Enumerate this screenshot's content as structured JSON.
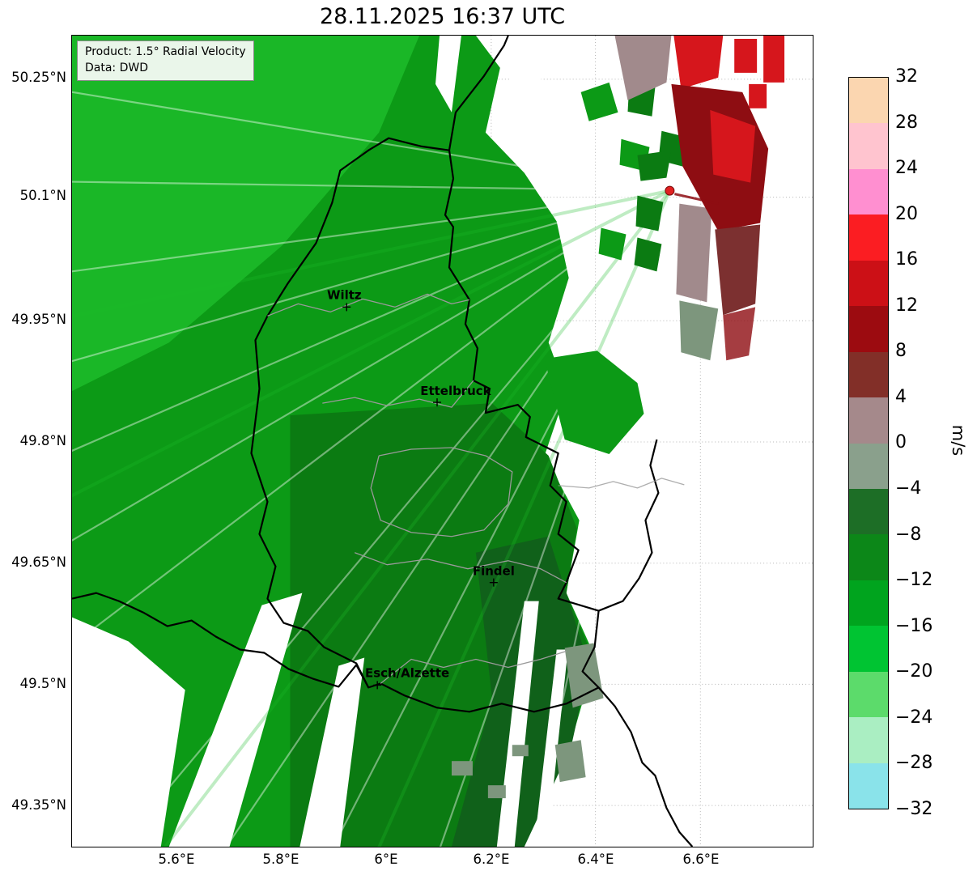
{
  "title": "28.11.2025 16:37 UTC",
  "info_box": {
    "product": "Product: 1.5° Radial Velocity",
    "source": "Data: DWD"
  },
  "axes": {
    "lat_ticks": [
      "50.25°N",
      "50.1°N",
      "49.95°N",
      "49.8°N",
      "49.65°N",
      "49.5°N",
      "49.35°N"
    ],
    "lon_ticks": [
      "5.6°E",
      "5.8°E",
      "6°E",
      "6.2°E",
      "6.4°E",
      "6.6°E"
    ]
  },
  "cities": {
    "wiltz": "Wiltz",
    "ettelbruck": "Ettelbruck",
    "findel": "Findel",
    "esch": "Esch/Alzette"
  },
  "colorbar": {
    "label": "m/s",
    "ticks": [
      "32",
      "28",
      "24",
      "20",
      "16",
      "12",
      "8",
      "4",
      "0",
      "−4",
      "−8",
      "−12",
      "−16",
      "−20",
      "−24",
      "−28",
      "−32"
    ],
    "segment_colors_top_to_bottom": [
      "#fbd6b0",
      "#ffc4cf",
      "#ff8fd0",
      "#fb1d22",
      "#cc1016",
      "#9c0b10",
      "#822f28",
      "#a5898b",
      "#8aa08c",
      "#1d6e26",
      "#0c8718",
      "#00a41e",
      "#00c432",
      "#5cdb6b",
      "#aaeec2",
      "#8ae3ea"
    ]
  },
  "palette": {
    "map_green_bright": "#1dbc2a",
    "map_green_mid": "#0c9a16",
    "map_green_dark": "#0b7b12",
    "map_green_deepest": "#10611a",
    "map_gray_green": "#7d967d",
    "map_red_bright": "#d6161c",
    "map_red_dark": "#8e0d12",
    "map_maroon": "#7c3030",
    "map_mauve": "#a18a8c",
    "border_black": "#000000",
    "border_gray": "#9a9a9a",
    "grid_gray": "#b5b5b5",
    "radar_dot": "#e02020",
    "info_box_bg": "#eaf6ea",
    "info_box_border": "#8a8a8a"
  },
  "chart_data": {
    "type": "heatmap",
    "title": "28.11.2025 16:37 UTC",
    "product": "1.5° Radial Velocity",
    "data_source": "DWD",
    "units": "m/s",
    "value_range": [
      -32,
      32
    ],
    "colorbar_ticks": [
      32,
      28,
      24,
      20,
      16,
      12,
      8,
      4,
      0,
      -4,
      -8,
      -12,
      -16,
      -20,
      -24,
      -28,
      -32
    ],
    "x_axis": {
      "ticks": [
        "5.6°E",
        "5.8°E",
        "6°E",
        "6.2°E",
        "6.4°E",
        "6.6°E"
      ],
      "range_deg_e": [
        5.4,
        6.81
      ]
    },
    "y_axis": {
      "ticks": [
        "50.25°N",
        "50.1°N",
        "49.95°N",
        "49.8°N",
        "49.65°N",
        "49.5°N",
        "49.35°N"
      ],
      "range_deg_n": [
        49.3,
        50.31
      ]
    },
    "grid": true,
    "legend_position": "right colorbar",
    "radar_site": {
      "lon_e": 6.54,
      "lat_n": 50.11
    },
    "cities": [
      {
        "name": "Wiltz",
        "lon_e": 5.93,
        "lat_n": 49.97
      },
      {
        "name": "Ettelbruck",
        "lon_e": 6.1,
        "lat_n": 49.85
      },
      {
        "name": "Findel",
        "lon_e": 6.21,
        "lat_n": 49.63
      },
      {
        "name": "Esch/Alzette",
        "lon_e": 5.98,
        "lat_n": 49.5
      }
    ],
    "regions": [
      {
        "area": "west and northwest sector",
        "approx_velocity_ms": [
          -20,
          -10
        ],
        "color": "green"
      },
      {
        "area": "central Luxembourg",
        "approx_velocity_ms": [
          -12,
          -8
        ],
        "color": "green"
      },
      {
        "area": "south / southeast band",
        "approx_velocity_ms": [
          -8,
          -2
        ],
        "color": "dark green"
      },
      {
        "area": "northeast cluster near radar",
        "approx_velocity_ms": [
          4,
          20
        ],
        "color": "red / dark red"
      },
      {
        "area": "patches around radar and southeast border",
        "approx_velocity_ms": [
          -2,
          4
        ],
        "color": "gray / mauve"
      }
    ]
  }
}
